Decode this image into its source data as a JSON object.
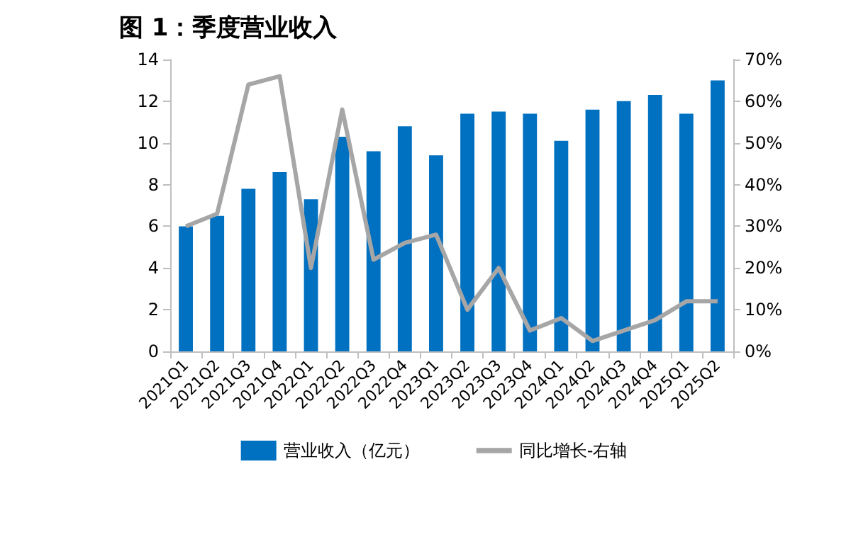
{
  "chart_data": {
    "type": "bar",
    "title": "图 1：季度营业收入",
    "categories": [
      "2021Q1",
      "2021Q2",
      "2021Q3",
      "2021Q4",
      "2022Q1",
      "2022Q2",
      "2022Q3",
      "2022Q4",
      "2023Q1",
      "2023Q2",
      "2023Q3",
      "2023Q4",
      "2024Q1",
      "2024Q2",
      "2024Q3",
      "2024Q4",
      "2025Q1",
      "2025Q2"
    ],
    "series": [
      {
        "name": "营业收入（亿元）",
        "color": "#0070c0",
        "values": [
          6.0,
          6.5,
          7.8,
          8.6,
          7.3,
          10.3,
          9.6,
          10.8,
          9.4,
          11.4,
          11.5,
          11.4,
          10.1,
          11.6,
          12.0,
          12.3,
          11.4,
          13.0
        ]
      },
      {
        "name": "同比增长-右轴",
        "type": "line",
        "axis": "y2",
        "color": "#a6a6a6",
        "values": [
          30,
          33,
          64,
          66,
          20,
          58,
          22,
          26,
          28,
          10,
          20,
          5,
          8,
          2.5,
          5,
          7.5,
          12,
          12
        ]
      }
    ],
    "ylim": [
      0,
      14
    ],
    "yticks": [
      0,
      2,
      4,
      6,
      8,
      10,
      12,
      14
    ],
    "y2lim": [
      0,
      70
    ],
    "y2ticks": [
      {
        "value": 0,
        "label": "0%"
      },
      {
        "value": 10,
        "label": "10%"
      },
      {
        "value": 20,
        "label": "20%"
      },
      {
        "value": 30,
        "label": "30%"
      },
      {
        "value": 40,
        "label": "40%"
      },
      {
        "value": 50,
        "label": "50%"
      },
      {
        "value": 60,
        "label": "60%"
      },
      {
        "value": 70,
        "label": "70%"
      }
    ],
    "grid": false,
    "legend": "bottom",
    "marker": "none"
  }
}
